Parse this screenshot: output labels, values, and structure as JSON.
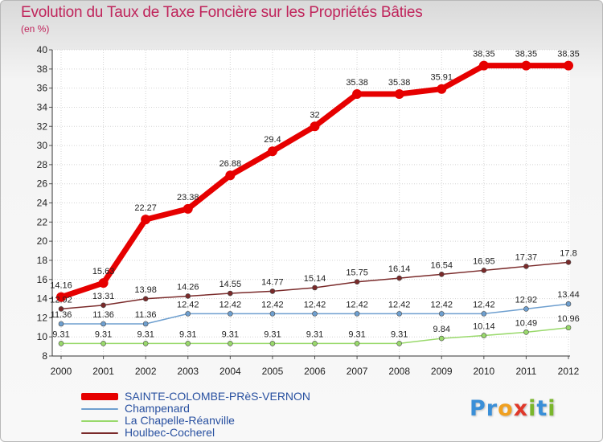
{
  "title": "Evolution du Taux de Taxe Foncière sur les Propriétés Bâties",
  "unit": "(en %)",
  "logo": {
    "text": "Proxiti",
    "letters": [
      "P",
      "r",
      "o",
      "x",
      "i",
      "t",
      "i"
    ],
    "colors": [
      "#3a8fd8",
      "#3a8fd8",
      "#f0a020",
      "#e0382a",
      "#7ab62c",
      "#3a8fd8",
      "#7ab62c"
    ]
  },
  "chart_data": {
    "type": "line",
    "title": "Evolution du Taux de Taxe Foncière sur les Propriétés Bâties",
    "ylabel": "(en %)",
    "xlabel": "",
    "ylim": [
      8,
      40
    ],
    "yticks": [
      8,
      10,
      12,
      14,
      16,
      18,
      20,
      22,
      24,
      26,
      28,
      30,
      32,
      34,
      36,
      38,
      40
    ],
    "x": [
      "2000",
      "2001",
      "2002",
      "2003",
      "2004",
      "2005",
      "2006",
      "2007",
      "2008",
      "2009",
      "2010",
      "2011",
      "2012"
    ],
    "series": [
      {
        "name": "SAINTE-COLOMBE-PRèS-VERNON",
        "color": "#e60000",
        "width": 7,
        "values": [
          14.16,
          15.63,
          22.27,
          23.38,
          26.88,
          29.4,
          32,
          35.38,
          35.38,
          35.91,
          38.35,
          38.35,
          38.35
        ],
        "labels": [
          "14.16",
          "15.63",
          "22.27",
          "23.38",
          "26.88",
          "29.4",
          "32",
          "35.38",
          "35.38",
          "35.91",
          "38.35",
          "38.35",
          "38.35"
        ]
      },
      {
        "name": "Champenard",
        "color": "#6e9fcf",
        "width": 1.5,
        "values": [
          11.36,
          11.36,
          11.36,
          12.42,
          12.42,
          12.42,
          12.42,
          12.42,
          12.42,
          12.42,
          12.42,
          12.92,
          13.44
        ],
        "labels": [
          "11.36",
          "11.36",
          "11.36",
          "12.42",
          "12.42",
          "12.42",
          "12.42",
          "12.42",
          "12.42",
          "12.42",
          "12.42",
          "12.92",
          "13.44"
        ]
      },
      {
        "name": "La Chapelle-Réanville",
        "color": "#99d96b",
        "width": 1.5,
        "values": [
          9.31,
          9.31,
          9.31,
          9.31,
          9.31,
          9.31,
          9.31,
          9.31,
          9.31,
          9.84,
          10.14,
          10.49,
          10.96
        ],
        "labels": [
          "9.31",
          "9.31",
          "9.31",
          "9.31",
          "9.31",
          "9.31",
          "9.31",
          "9.31",
          "9.31",
          "9.84",
          "10.14",
          "10.49",
          "10.96"
        ]
      },
      {
        "name": "Houlbec-Cocherel",
        "color": "#7a2a2a",
        "width": 1.5,
        "values": [
          12.92,
          13.31,
          13.98,
          14.26,
          14.55,
          14.77,
          15.14,
          15.75,
          16.14,
          16.54,
          16.95,
          17.37,
          17.8
        ],
        "labels": [
          "12.92",
          "13.31",
          "13.98",
          "14.26",
          "14.55",
          "14.77",
          "15.14",
          "15.75",
          "16.14",
          "16.54",
          "16.95",
          "17.37",
          "17.8"
        ]
      }
    ]
  }
}
